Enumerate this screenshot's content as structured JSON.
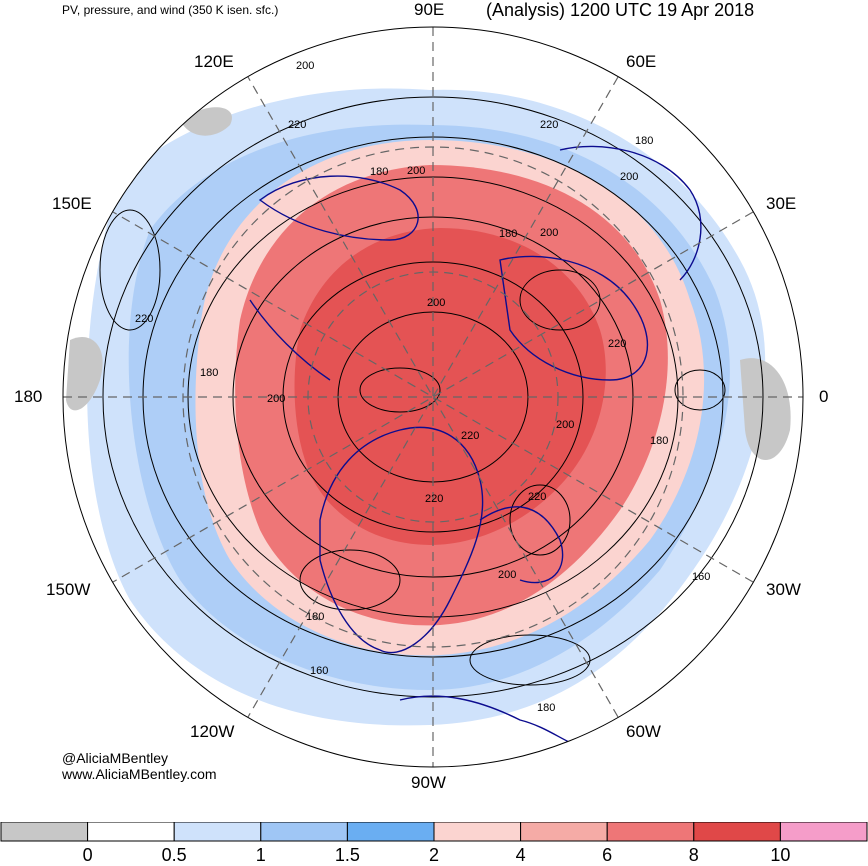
{
  "header": {
    "product_title": "PV, pressure, and wind (350 K isen. sfc.)",
    "analysis_label": "(Analysis) 1200 UTC 19 Apr 2018"
  },
  "longitude_labels": {
    "lon_90e": "90E",
    "lon_60e": "60E",
    "lon_30e": "30E",
    "lon_0": "0",
    "lon_30w": "30W",
    "lon_60w": "60W",
    "lon_90w": "90W",
    "lon_120w": "120W",
    "lon_150w": "150W",
    "lon_180": "180",
    "lon_150e": "150E",
    "lon_120e": "120E"
  },
  "contour_labels": [
    "200",
    "220",
    "180",
    "200",
    "180",
    "220",
    "200",
    "220",
    "200",
    "180",
    "200",
    "200",
    "220",
    "220",
    "180",
    "200",
    "180",
    "220",
    "160",
    "180",
    "160",
    "180",
    "200",
    "220"
  ],
  "credit": {
    "handle": "@AliciaMBentley",
    "website": "www.AliciaMBentley.com"
  },
  "colorbar": {
    "ticks": [
      "0",
      "0.5",
      "1",
      "1.5",
      "2",
      "4",
      "6",
      "8",
      "10"
    ],
    "colors": [
      "#c7c7c7",
      "#ffffff",
      "#cfe2fb",
      "#9fc6f5",
      "#6aaef2",
      "#fbd4d0",
      "#f5aba6",
      "#ee7677",
      "#e04848",
      "#f59dc9"
    ]
  },
  "colors": {
    "ocean_fill": "#ffffff",
    "coastline": "#0c0c8f",
    "contour": "#000000",
    "grid": "#666666",
    "pv_low": "#9fc6f5",
    "pv_high": "#ee7677"
  }
}
